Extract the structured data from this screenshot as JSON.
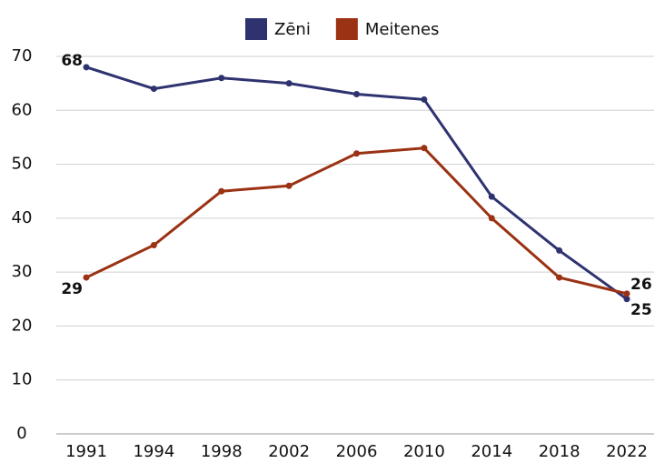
{
  "chart_data": {
    "type": "line",
    "categories": [
      "1991",
      "1994",
      "1998",
      "2002",
      "2006",
      "2010",
      "2014",
      "2018",
      "2022"
    ],
    "series": [
      {
        "name": "Zēni",
        "color": "#2e3370",
        "values": [
          68,
          64,
          66,
          65,
          63,
          62,
          44,
          34,
          25
        ]
      },
      {
        "name": "Meitenes",
        "color": "#9a3213",
        "values": [
          29,
          35,
          45,
          46,
          52,
          53,
          40,
          29,
          26
        ]
      }
    ],
    "ylim": [
      0,
      70
    ],
    "yticks": [
      0,
      10,
      20,
      30,
      40,
      50,
      60,
      70
    ],
    "grid": true,
    "legend": "top"
  }
}
